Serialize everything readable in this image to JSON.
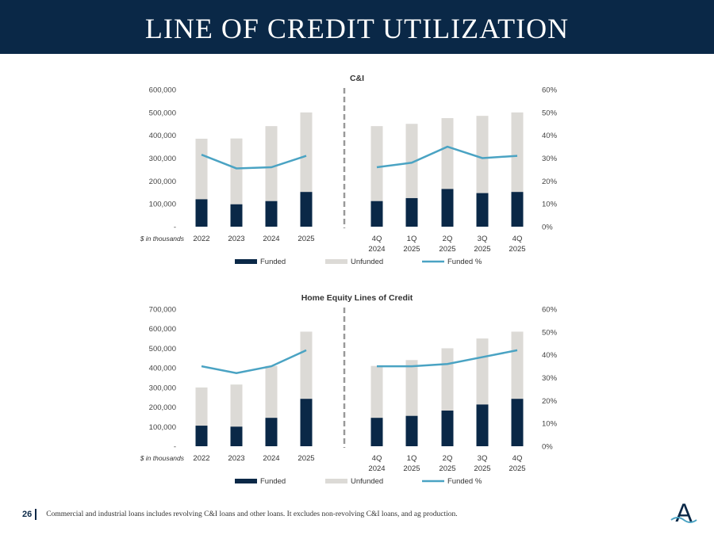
{
  "page": {
    "title": "LINE OF CREDIT UTILIZATION",
    "page_number": "26",
    "footnote": "Commercial and industrial loans includes revolving C&I loans and other loans. It excludes non-revolving C&I loans, and ag production.",
    "logo_letter": "A",
    "colors": {
      "header": "#0a2847",
      "funded": "#0a2847",
      "unfunded": "#dcdad6",
      "funded_pct": "#4aa3c3",
      "divider": "#999999"
    }
  },
  "chart_data": [
    {
      "type": "bar",
      "stacked": true,
      "title": "C&I",
      "unit_label": "$ in thousands",
      "categories": [
        "2022",
        "2023",
        "2024",
        "2025",
        "4Q 2024",
        "1Q 2025",
        "2Q 2025",
        "3Q 2025",
        "4Q 2025"
      ],
      "category_lines": [
        [
          "2022"
        ],
        [
          "2023"
        ],
        [
          "2024"
        ],
        [
          "2025"
        ],
        [
          "4Q",
          "2024"
        ],
        [
          "1Q",
          "2025"
        ],
        [
          "2Q",
          "2025"
        ],
        [
          "3Q",
          "2025"
        ],
        [
          "4Q",
          "2025"
        ]
      ],
      "series": [
        {
          "name": "Funded",
          "type": "bar",
          "values": [
            120000,
            98000,
            112000,
            152000,
            112000,
            125000,
            165000,
            147000,
            152000
          ]
        },
        {
          "name": "Unfunded",
          "type": "bar",
          "values": [
            265000,
            288000,
            328000,
            348000,
            328000,
            325000,
            310000,
            338000,
            348000
          ]
        },
        {
          "name": "Funded %",
          "type": "line",
          "axis": "right",
          "values": [
            0.315,
            0.255,
            0.26,
            0.31,
            0.26,
            0.28,
            0.35,
            0.3,
            0.31
          ]
        }
      ],
      "y_left": {
        "min": 0,
        "max": 600000,
        "ticks": [
          "-",
          "100,000",
          "200,000",
          "300,000",
          "400,000",
          "500,000",
          "600,000"
        ]
      },
      "y_right": {
        "min": 0,
        "max": 0.6,
        "ticks": [
          "0%",
          "10%",
          "20%",
          "30%",
          "40%",
          "50%",
          "60%"
        ]
      },
      "legend": {
        "position": "bottom",
        "labels": [
          "Funded",
          "Unfunded",
          "Funded %"
        ]
      }
    },
    {
      "type": "bar",
      "stacked": true,
      "title": "Home Equity Lines of Credit",
      "unit_label": "$ in thousands",
      "categories": [
        "2022",
        "2023",
        "2024",
        "2025",
        "4Q 2024",
        "1Q 2025",
        "2Q 2025",
        "3Q 2025",
        "4Q 2025"
      ],
      "category_lines": [
        [
          "2022"
        ],
        [
          "2023"
        ],
        [
          "2024"
        ],
        [
          "2025"
        ],
        [
          "4Q",
          "2024"
        ],
        [
          "1Q",
          "2025"
        ],
        [
          "2Q",
          "2025"
        ],
        [
          "3Q",
          "2025"
        ],
        [
          "4Q",
          "2025"
        ]
      ],
      "series": [
        {
          "name": "Funded",
          "type": "bar",
          "values": [
            105000,
            100000,
            145000,
            242000,
            145000,
            155000,
            182000,
            213000,
            242000
          ]
        },
        {
          "name": "Unfunded",
          "type": "bar",
          "values": [
            195000,
            215000,
            265000,
            343000,
            265000,
            285000,
            318000,
            337000,
            343000
          ]
        },
        {
          "name": "Funded %",
          "type": "line",
          "axis": "right",
          "values": [
            0.35,
            0.32,
            0.35,
            0.42,
            0.35,
            0.35,
            0.36,
            0.39,
            0.42
          ]
        }
      ],
      "y_left": {
        "min": 0,
        "max": 700000,
        "ticks": [
          "-",
          "100,000",
          "200,000",
          "300,000",
          "400,000",
          "500,000",
          "600,000",
          "700,000"
        ]
      },
      "y_right": {
        "min": 0,
        "max": 0.6,
        "ticks": [
          "0%",
          "10%",
          "20%",
          "30%",
          "40%",
          "50%",
          "60%"
        ]
      },
      "legend": {
        "position": "bottom",
        "labels": [
          "Funded",
          "Unfunded",
          "Funded %"
        ]
      }
    }
  ]
}
